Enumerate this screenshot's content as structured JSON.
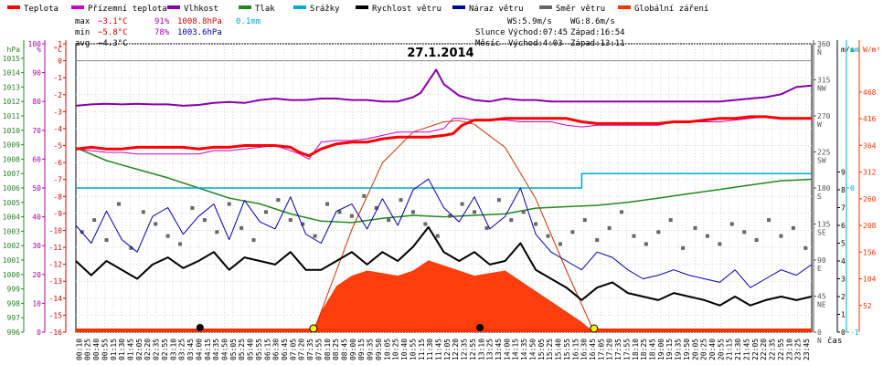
{
  "chart_data": {
    "type": "line",
    "title": "27.1.2014",
    "legend": {
      "placement": "top-left",
      "items": [
        {
          "name": "Teplota",
          "color": "#ff0000"
        },
        {
          "name": "Přízemní teplota",
          "color": "#cc00cc"
        },
        {
          "name": "Vlhkost",
          "color": "#8800aa"
        },
        {
          "name": "Tlak",
          "color": "#228822"
        },
        {
          "name": "Srážky",
          "color": "#00aacc"
        },
        {
          "name": "Rychlost větru",
          "color": "#000000"
        },
        {
          "name": "Náraz větru",
          "color": "#0000aa"
        },
        {
          "name": "Směr větru",
          "color": "#666666"
        },
        {
          "name": "Globální záření",
          "color": "#ff3300"
        }
      ]
    },
    "stats": {
      "max": {
        "label": "max",
        "temp": "−3.1°C",
        "hum": "91%",
        "press": "1008.8hPa",
        "rain": "0.1mm"
      },
      "min": {
        "label": "min",
        "temp": "−5.8°C",
        "hum": "78%",
        "press": "1003.6hPa"
      },
      "avg": {
        "label": "avg",
        "temp": "−4.3°C"
      },
      "ws": "WS:5.9m/s",
      "wg": "WG:8.6m/s",
      "sun": {
        "label": "Slunce",
        "rise": "Východ:07:45",
        "set": "Západ:16:54"
      },
      "moon": {
        "label": "Měsíc",
        "rise": "Východ:4:03",
        "set": "Západ:13:11"
      }
    },
    "axes": {
      "hpa": {
        "unit": "hPa",
        "ticks": [
          996,
          997,
          998,
          999,
          1000,
          1001,
          1002,
          1003,
          1004,
          1005,
          1006,
          1007,
          1008,
          1009,
          1010,
          1011,
          1012,
          1013,
          1014,
          1015
        ],
        "range": [
          996,
          1016
        ]
      },
      "pct": {
        "unit": "%",
        "ticks": [
          0,
          10,
          20,
          30,
          40,
          50,
          60,
          70,
          80,
          90,
          100
        ],
        "range": [
          0,
          100
        ]
      },
      "temp": {
        "unit": "°C",
        "ticks": [
          -16,
          -15,
          -14,
          -13,
          -12,
          -11,
          -10,
          -9,
          -8,
          -7,
          -6,
          -5,
          -4,
          -3,
          -2,
          -1,
          0,
          1
        ],
        "range": [
          -16,
          1
        ]
      },
      "dir": {
        "unit": "°",
        "ticks": [
          0,
          45,
          90,
          135,
          180,
          225,
          270,
          315,
          360
        ],
        "labels": [
          "N",
          "NE",
          "E",
          "SE",
          "S",
          "SW",
          "W",
          "NW",
          "N"
        ],
        "range": [
          0,
          360
        ]
      },
      "ms": {
        "unit": "m/s",
        "ticks": [
          0,
          1,
          2,
          3,
          4,
          5,
          6,
          7,
          8,
          9
        ],
        "range": [
          0,
          16.2
        ]
      },
      "mm": {
        "unit": "mm",
        "ticks": [
          0,
          -1
        ],
        "range": [
          -1,
          1
        ]
      },
      "wm2": {
        "unit": "W/m²",
        "ticks": [
          0,
          52,
          104,
          156,
          208,
          260,
          312,
          364,
          416,
          468
        ],
        "range": [
          0,
          562
        ]
      },
      "x": {
        "label": "čas",
        "ticks": [
          "00:10",
          "00:25",
          "00:40",
          "00:55",
          "01:15",
          "01:30",
          "01:45",
          "02:05",
          "02:20",
          "02:35",
          "02:55",
          "03:10",
          "03:25",
          "03:45",
          "04:00",
          "04:15",
          "04:35",
          "04:50",
          "05:05",
          "05:25",
          "05:40",
          "05:55",
          "06:15",
          "06:30",
          "06:45",
          "07:05",
          "07:20",
          "07:35",
          "07:55",
          "08:10",
          "08:25",
          "08:45",
          "09:00",
          "09:15",
          "09:35",
          "09:50",
          "10:05",
          "10:25",
          "10:40",
          "10:55",
          "11:15",
          "11:30",
          "11:45",
          "12:05",
          "12:20",
          "12:35",
          "12:55",
          "13:10",
          "13:25",
          "13:45",
          "14:00",
          "14:15",
          "14:35",
          "14:50",
          "15:05",
          "15:25",
          "15:40",
          "15:55",
          "16:15",
          "16:30",
          "16:45",
          "17:05",
          "17:20",
          "17:35",
          "17:55",
          "18:10",
          "18:25",
          "18:45",
          "19:00",
          "19:15",
          "19:35",
          "19:50",
          "20:05",
          "20:25",
          "20:40",
          "20:55",
          "21:15",
          "21:30",
          "21:45",
          "22:05",
          "22:20",
          "22:35",
          "22:55",
          "23:10",
          "23:25",
          "23:45"
        ],
        "range_hours": [
          0,
          24
        ]
      }
    },
    "series": {
      "temperature": {
        "x": [
          0,
          0.5,
          1,
          1.5,
          2,
          2.5,
          3,
          3.5,
          4,
          4.5,
          5,
          5.5,
          6,
          6.5,
          7,
          7.3,
          7.6,
          8,
          8.5,
          9,
          9.5,
          10,
          10.5,
          11,
          11.5,
          12,
          12.3,
          12.6,
          13,
          13.5,
          14,
          14.5,
          15,
          15.5,
          16,
          16.5,
          17,
          17.5,
          18,
          18.5,
          19,
          19.5,
          20,
          20.5,
          21,
          21.5,
          22,
          22.5,
          23,
          23.5,
          24
        ],
        "y": [
          -5.2,
          -5.1,
          -5.2,
          -5.2,
          -5.1,
          -5.1,
          -5.1,
          -5.1,
          -5.2,
          -5.1,
          -5.1,
          -5.0,
          -5.0,
          -5.0,
          -5.1,
          -5.4,
          -5.6,
          -5.2,
          -4.9,
          -4.8,
          -4.8,
          -4.6,
          -4.5,
          -4.5,
          -4.5,
          -4.4,
          -4.3,
          -3.8,
          -3.5,
          -3.5,
          -3.4,
          -3.4,
          -3.4,
          -3.4,
          -3.4,
          -3.6,
          -3.7,
          -3.7,
          -3.7,
          -3.7,
          -3.7,
          -3.6,
          -3.6,
          -3.5,
          -3.4,
          -3.4,
          -3.3,
          -3.3,
          -3.4,
          -3.4,
          -3.4
        ]
      },
      "ground_temperature": {
        "x": [
          0,
          0.5,
          1,
          1.5,
          2,
          2.5,
          3,
          3.5,
          4,
          4.5,
          5,
          5.5,
          6,
          6.5,
          7,
          7.3,
          7.6,
          8,
          8.5,
          9,
          9.5,
          10,
          10.5,
          11,
          11.5,
          12,
          12.3,
          12.6,
          13,
          13.5,
          14,
          14.5,
          15,
          15.5,
          16,
          16.5,
          17,
          17.5,
          18,
          18.5,
          19,
          19.5,
          20,
          20.5,
          21,
          21.5,
          22,
          22.5,
          23,
          23.5,
          24
        ],
        "y": [
          -5.2,
          -5.3,
          -5.4,
          -5.4,
          -5.5,
          -5.5,
          -5.5,
          -5.5,
          -5.5,
          -5.3,
          -5.3,
          -5.2,
          -5.1,
          -5.0,
          -5.3,
          -5.5,
          -5.8,
          -4.8,
          -4.7,
          -4.7,
          -4.6,
          -4.4,
          -4.2,
          -4.2,
          -4.2,
          -4.0,
          -3.4,
          -3.4,
          -3.5,
          -3.5,
          -3.5,
          -3.6,
          -3.6,
          -3.6,
          -3.8,
          -3.9,
          -3.8,
          -3.8,
          -3.8,
          -3.8,
          -3.8,
          -3.6,
          -3.6,
          -3.6,
          -3.6,
          -3.5,
          -3.4,
          -3.3,
          -3.4,
          -3.4,
          -3.4
        ]
      },
      "humidity": {
        "x": [
          0,
          0.5,
          1,
          1.5,
          2,
          2.5,
          3,
          3.5,
          4,
          4.5,
          5,
          5.5,
          6,
          6.5,
          7,
          7.5,
          8,
          8.5,
          9,
          9.5,
          10,
          10.5,
          11,
          11.25,
          11.5,
          11.75,
          12,
          12.25,
          12.5,
          13,
          13.5,
          14,
          14.5,
          15,
          15.5,
          16,
          16.5,
          17,
          17.5,
          18,
          18.5,
          19,
          19.5,
          20,
          20.5,
          21,
          21.5,
          22,
          22.5,
          23,
          23.5,
          24
        ],
        "y": [
          78.5,
          79.0,
          79.2,
          79.0,
          79.2,
          79.0,
          79.0,
          78.5,
          78.8,
          79.5,
          79.8,
          79.5,
          80.5,
          81.0,
          80.5,
          80.5,
          81.0,
          81.0,
          80.5,
          80.5,
          80.0,
          80.0,
          81.5,
          83.0,
          87.0,
          91.0,
          86.0,
          84.0,
          82.0,
          80.5,
          80.0,
          81.0,
          80.5,
          80.5,
          80.0,
          80.0,
          80.0,
          80.0,
          80.0,
          80.0,
          80.0,
          80.0,
          80.0,
          80.0,
          80.0,
          80.0,
          80.5,
          81.0,
          81.5,
          82.5,
          85.0,
          85.5
        ]
      },
      "pressure": {
        "x": [
          0,
          1,
          2,
          3,
          4,
          5,
          6,
          7,
          8,
          9,
          10,
          11,
          12,
          13,
          14,
          15,
          16,
          17,
          18,
          19,
          20,
          21,
          22,
          23,
          24
        ],
        "y": [
          1008.8,
          1007.9,
          1007.3,
          1006.7,
          1006.0,
          1005.3,
          1004.9,
          1004.2,
          1003.7,
          1003.6,
          1003.9,
          1004.1,
          1004.0,
          1004.1,
          1004.2,
          1004.6,
          1004.7,
          1004.8,
          1005.0,
          1005.3,
          1005.6,
          1005.9,
          1006.2,
          1006.5,
          1006.6
        ]
      },
      "wind_speed_ms": {
        "x": [
          0,
          0.5,
          1,
          1.5,
          2,
          2.5,
          3,
          3.5,
          4,
          4.5,
          5,
          5.5,
          6,
          6.5,
          7,
          7.5,
          8,
          8.5,
          9,
          9.5,
          10,
          10.5,
          11,
          11.5,
          12,
          12.5,
          13,
          13.5,
          14,
          14.5,
          15,
          15.5,
          16,
          16.5,
          17,
          17.5,
          18,
          18.5,
          19,
          19.5,
          20,
          20.5,
          21,
          21.5,
          22,
          22.5,
          23,
          23.5,
          24
        ],
        "y": [
          4.0,
          3.2,
          4.0,
          3.5,
          3.0,
          3.8,
          4.2,
          3.6,
          4.0,
          4.5,
          3.5,
          4.2,
          4.0,
          3.8,
          4.5,
          3.5,
          3.5,
          4.0,
          4.5,
          3.8,
          4.5,
          4.0,
          4.8,
          5.9,
          4.5,
          4.0,
          4.5,
          3.8,
          4.0,
          5.0,
          3.5,
          3.0,
          2.5,
          1.8,
          2.5,
          2.8,
          2.2,
          2.0,
          1.8,
          2.2,
          2.0,
          1.8,
          1.5,
          2.0,
          1.5,
          1.8,
          2.0,
          1.8,
          2.0
        ]
      },
      "wind_gust_ms": {
        "x": [
          0,
          0.5,
          1,
          1.5,
          2,
          2.5,
          3,
          3.5,
          4,
          4.5,
          5,
          5.5,
          6,
          6.5,
          7,
          7.5,
          8,
          8.5,
          9,
          9.5,
          10,
          10.5,
          11,
          11.5,
          12,
          12.5,
          13,
          13.5,
          14,
          14.5,
          15,
          15.5,
          16,
          16.5,
          17,
          17.5,
          18,
          18.5,
          19,
          19.5,
          20,
          20.5,
          21,
          21.5,
          22,
          22.5,
          23,
          23.5,
          24
        ],
        "y": [
          6.0,
          5.0,
          6.8,
          5.2,
          4.5,
          6.5,
          7.0,
          5.5,
          6.5,
          7.2,
          5.2,
          7.4,
          6.2,
          5.8,
          7.6,
          5.5,
          5.0,
          6.8,
          7.2,
          5.8,
          7.5,
          6.0,
          8.0,
          8.6,
          7.0,
          6.2,
          7.6,
          5.8,
          6.5,
          8.1,
          5.5,
          4.5,
          4.0,
          3.5,
          4.5,
          4.2,
          3.5,
          3.0,
          3.2,
          3.5,
          3.2,
          3.0,
          2.8,
          3.5,
          2.5,
          3.0,
          3.5,
          3.2,
          3.8
        ]
      },
      "wind_direction_deg": {
        "x": [
          0.2,
          0.6,
          1.0,
          1.4,
          1.8,
          2.2,
          2.6,
          3.0,
          3.4,
          3.8,
          4.2,
          4.6,
          5.0,
          5.4,
          5.8,
          6.2,
          6.6,
          7.0,
          7.4,
          7.8,
          8.2,
          8.6,
          9.0,
          9.4,
          9.8,
          10.2,
          10.6,
          11.0,
          11.4,
          11.8,
          12.2,
          12.6,
          13.0,
          13.4,
          13.8,
          14.2,
          14.6,
          15.0,
          15.4,
          15.8,
          16.2,
          16.6,
          17.0,
          17.4,
          17.8,
          18.2,
          18.6,
          19.0,
          19.4,
          19.8,
          20.2,
          20.6,
          21.0,
          21.4,
          21.8,
          22.2,
          22.6,
          23.0,
          23.4,
          23.8
        ],
        "y": [
          125,
          140,
          115,
          160,
          105,
          150,
          135,
          120,
          110,
          155,
          140,
          125,
          160,
          130,
          115,
          150,
          165,
          140,
          135,
          120,
          160,
          150,
          145,
          170,
          155,
          140,
          165,
          150,
          135,
          120,
          145,
          160,
          150,
          130,
          165,
          140,
          150,
          135,
          120,
          110,
          125,
          140,
          115,
          130,
          150,
          120,
          110,
          125,
          140,
          105,
          130,
          120,
          110,
          135,
          125,
          115,
          140,
          120,
          130,
          105
        ]
      },
      "precipitation_mm": {
        "x": [
          0,
          16.5,
          16.5,
          24
        ],
        "y": [
          0,
          0,
          0.1,
          0.1
        ]
      },
      "solar_radiation_wm2": {
        "x": [
          0,
          7.7,
          8.0,
          8.5,
          9.0,
          9.5,
          10.0,
          10.5,
          11.0,
          11.5,
          12.0,
          12.5,
          13.0,
          13.5,
          14.0,
          14.5,
          15.0,
          15.5,
          16.0,
          16.5,
          16.9,
          24
        ],
        "y": [
          0,
          0,
          40,
          90,
          110,
          120,
          115,
          110,
          120,
          140,
          130,
          120,
          110,
          115,
          120,
          100,
          80,
          60,
          40,
          20,
          0,
          0
        ]
      },
      "clear_sky_radiation_wm2": {
        "x": [
          7.75,
          9,
          10,
          11,
          12,
          12.5,
          13,
          14,
          15,
          16,
          16.9
        ],
        "y": [
          0,
          200,
          330,
          390,
          410,
          412,
          405,
          360,
          260,
          120,
          0
        ]
      }
    },
    "sun_markers": {
      "sunrise_hour": 7.75,
      "sunset_hour": 16.9
    },
    "moon_markers": {
      "moonrise_hour": 4.05,
      "moonset_hour": 13.18
    }
  }
}
